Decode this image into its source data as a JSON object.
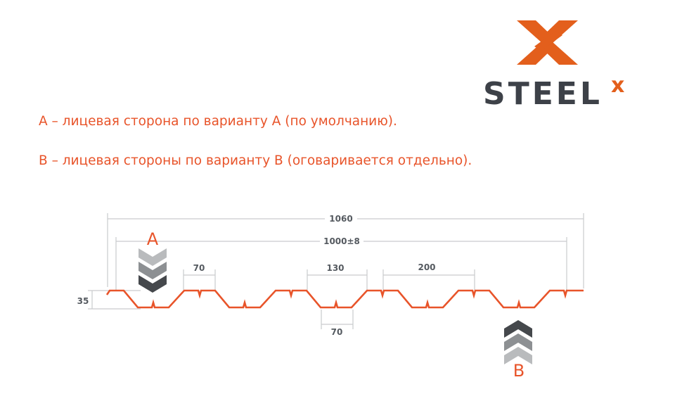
{
  "logo": {
    "text": "STEEL",
    "superscript": "x",
    "brand_color": "#e35f1c",
    "text_color": "#3d4148"
  },
  "legend": {
    "line_a": "А – лицевая сторона по варианту А (по умолчанию).",
    "line_b": "В – лицевая стороны по варианту В (оговаривается отдельно)."
  },
  "drawing": {
    "profile_color": "#e8542a",
    "dim_total": "1060",
    "dim_useful": "1000±8",
    "dim_top_shelf": "70",
    "dim_bottom_opening": "130",
    "dim_pitch": "200",
    "dim_bottom_shelf": "70",
    "dim_height": "35",
    "side_a_label": "A",
    "side_b_label": "B"
  }
}
